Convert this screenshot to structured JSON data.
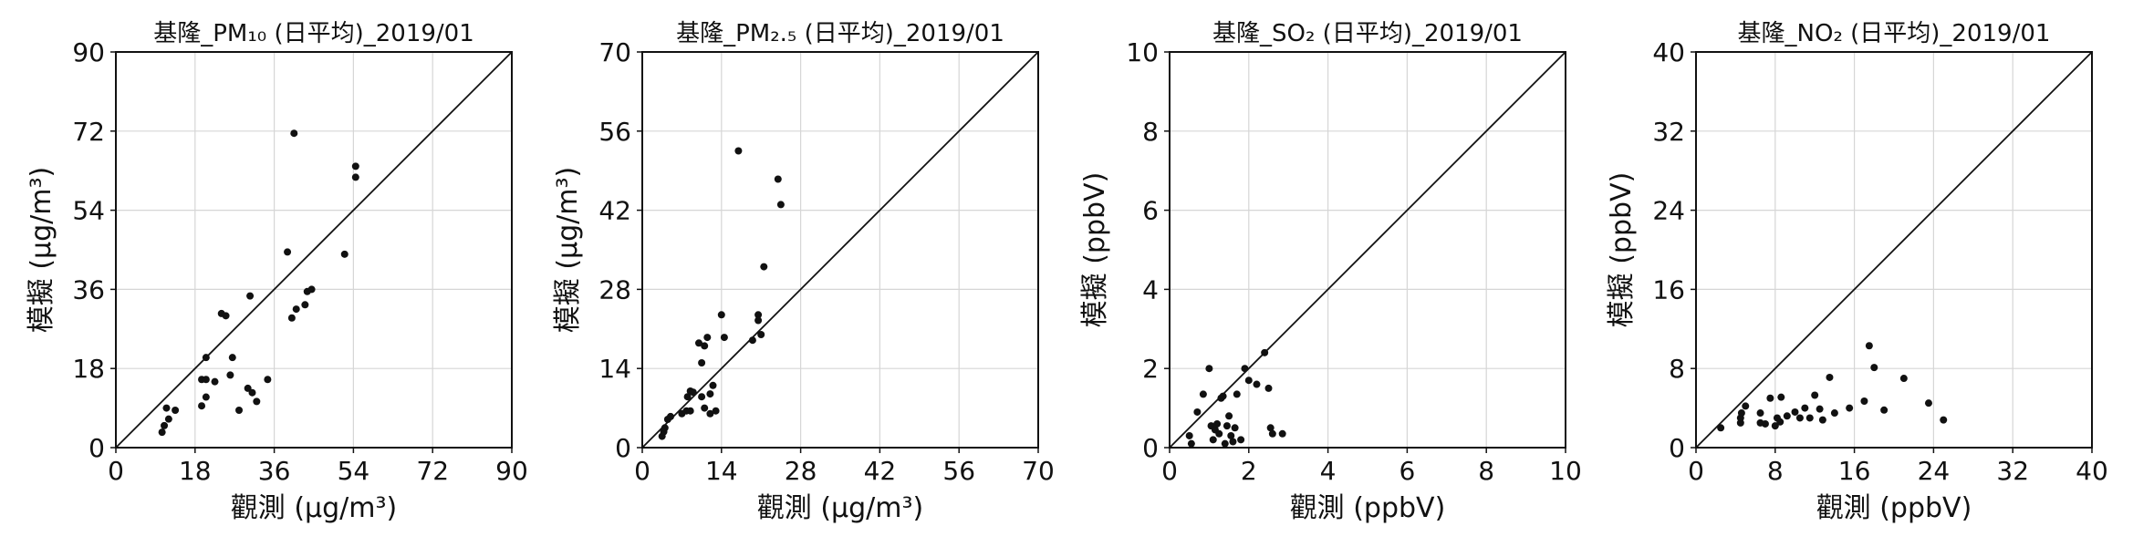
{
  "chart_data": [
    {
      "type": "scatter",
      "title": "基隆_PM₁₀ (日平均)_2019/01",
      "xlabel": "觀測 (μg/m³)",
      "ylabel": "模擬 (μg/m³)",
      "xlim": [
        0,
        90
      ],
      "ylim": [
        0,
        90
      ],
      "xticks": [
        "0",
        "18",
        "36",
        "54",
        "72",
        "90"
      ],
      "yticks": [
        "0",
        "18",
        "36",
        "54",
        "72",
        "90"
      ],
      "reference_line": "1:1",
      "grid": true,
      "points": [
        [
          10.5,
          3.5
        ],
        [
          11,
          5
        ],
        [
          12,
          6.5
        ],
        [
          11.5,
          9
        ],
        [
          13.5,
          8.5
        ],
        [
          19.5,
          9.5
        ],
        [
          20.5,
          11.5
        ],
        [
          19.5,
          15.5
        ],
        [
          20.5,
          15.5
        ],
        [
          20.5,
          20.5
        ],
        [
          22.5,
          15
        ],
        [
          24,
          30.5
        ],
        [
          25,
          30
        ],
        [
          26,
          16.5
        ],
        [
          26.5,
          20.5
        ],
        [
          28,
          8.5
        ],
        [
          30,
          13.5
        ],
        [
          31,
          12.5
        ],
        [
          30.5,
          34.5
        ],
        [
          32,
          10.5
        ],
        [
          34.5,
          15.5
        ],
        [
          39,
          44.5
        ],
        [
          40,
          29.5
        ],
        [
          40.5,
          71.5
        ],
        [
          41,
          31.5
        ],
        [
          43,
          32.5
        ],
        [
          43.5,
          35.5
        ],
        [
          44.5,
          36
        ],
        [
          52,
          44
        ],
        [
          54.5,
          61.5
        ],
        [
          54.5,
          64
        ]
      ]
    },
    {
      "type": "scatter",
      "title": "基隆_PM₂.₅ (日平均)_2019/01",
      "xlabel": "觀測 (μg/m³)",
      "ylabel": "模擬 (μg/m³)",
      "xlim": [
        0,
        70
      ],
      "ylim": [
        0,
        70
      ],
      "xticks": [
        "0",
        "14",
        "28",
        "42",
        "56",
        "70"
      ],
      "yticks": [
        "0",
        "14",
        "28",
        "42",
        "56",
        "70"
      ],
      "reference_line": "1:1",
      "grid": true,
      "points": [
        [
          3.5,
          2
        ],
        [
          3.8,
          2.8
        ],
        [
          4,
          3.5
        ],
        [
          4.5,
          5
        ],
        [
          5,
          5.5
        ],
        [
          7,
          6
        ],
        [
          7.8,
          6.5
        ],
        [
          8.5,
          6.5
        ],
        [
          8,
          9
        ],
        [
          8.5,
          10
        ],
        [
          9,
          9.8
        ],
        [
          10,
          18.5
        ],
        [
          10.5,
          9
        ],
        [
          10.5,
          15
        ],
        [
          11,
          7
        ],
        [
          11,
          18
        ],
        [
          11.5,
          19.5
        ],
        [
          12,
          6
        ],
        [
          12,
          9.5
        ],
        [
          12.5,
          11
        ],
        [
          13,
          6.5
        ],
        [
          14,
          23.5
        ],
        [
          14.5,
          19.5
        ],
        [
          17,
          52.5
        ],
        [
          19.5,
          19
        ],
        [
          20.5,
          23.5
        ],
        [
          20.5,
          22.5
        ],
        [
          21,
          20
        ],
        [
          21.5,
          32
        ],
        [
          24,
          47.5
        ],
        [
          24.5,
          43
        ]
      ]
    },
    {
      "type": "scatter",
      "title": "基隆_SO₂ (日平均)_2019/01",
      "xlabel": "觀測 (ppbV)",
      "ylabel": "模擬 (ppbV)",
      "xlim": [
        0,
        10
      ],
      "ylim": [
        0,
        10
      ],
      "xticks": [
        "0",
        "2",
        "4",
        "6",
        "8",
        "10"
      ],
      "yticks": [
        "0",
        "2",
        "4",
        "6",
        "8",
        "10"
      ],
      "reference_line": "1:1",
      "grid": true,
      "points": [
        [
          0.5,
          0.3
        ],
        [
          0.55,
          0.1
        ],
        [
          0.7,
          0.9
        ],
        [
          0.85,
          1.35
        ],
        [
          1.0,
          2.0
        ],
        [
          1.05,
          0.55
        ],
        [
          1.1,
          0.2
        ],
        [
          1.15,
          0.45
        ],
        [
          1.2,
          0.6
        ],
        [
          1.25,
          0.35
        ],
        [
          1.3,
          1.25
        ],
        [
          1.35,
          1.3
        ],
        [
          1.4,
          0.1
        ],
        [
          1.45,
          0.55
        ],
        [
          1.5,
          0.8
        ],
        [
          1.55,
          0.3
        ],
        [
          1.6,
          0.15
        ],
        [
          1.65,
          0.5
        ],
        [
          1.7,
          1.35
        ],
        [
          1.8,
          0.2
        ],
        [
          1.9,
          2.0
        ],
        [
          2.0,
          1.7
        ],
        [
          2.2,
          1.6
        ],
        [
          2.4,
          2.4
        ],
        [
          2.5,
          1.5
        ],
        [
          2.55,
          0.5
        ],
        [
          2.6,
          0.35
        ],
        [
          2.85,
          0.35
        ]
      ]
    },
    {
      "type": "scatter",
      "title": "基隆_NO₂ (日平均)_2019/01",
      "xlabel": "觀測 (ppbV)",
      "ylabel": "模擬 (ppbV)",
      "xlim": [
        0,
        40
      ],
      "ylim": [
        0,
        40
      ],
      "xticks": [
        "0",
        "8",
        "16",
        "24",
        "32",
        "40"
      ],
      "yticks": [
        "0",
        "8",
        "16",
        "24",
        "32",
        "40"
      ],
      "reference_line": "1:1",
      "grid": true,
      "points": [
        [
          2.5,
          2
        ],
        [
          4.5,
          2.5
        ],
        [
          4.5,
          3
        ],
        [
          4.6,
          3.5
        ],
        [
          5,
          4.2
        ],
        [
          6.5,
          2.5
        ],
        [
          6.5,
          3.5
        ],
        [
          7,
          2.4
        ],
        [
          7.5,
          5
        ],
        [
          8,
          2.2
        ],
        [
          8.2,
          3
        ],
        [
          8.5,
          2.6
        ],
        [
          8.6,
          5.1
        ],
        [
          9.2,
          3.2
        ],
        [
          10,
          3.6
        ],
        [
          10.5,
          3
        ],
        [
          11,
          4
        ],
        [
          11.5,
          3
        ],
        [
          12,
          5.3
        ],
        [
          12.5,
          3.9
        ],
        [
          12.8,
          2.8
        ],
        [
          13.5,
          7.1
        ],
        [
          14,
          3.5
        ],
        [
          15.5,
          4
        ],
        [
          17,
          4.7
        ],
        [
          17.5,
          10.3
        ],
        [
          18,
          8.1
        ],
        [
          19,
          3.8
        ],
        [
          21,
          7
        ],
        [
          23.5,
          4.5
        ],
        [
          25,
          2.8
        ]
      ]
    }
  ]
}
